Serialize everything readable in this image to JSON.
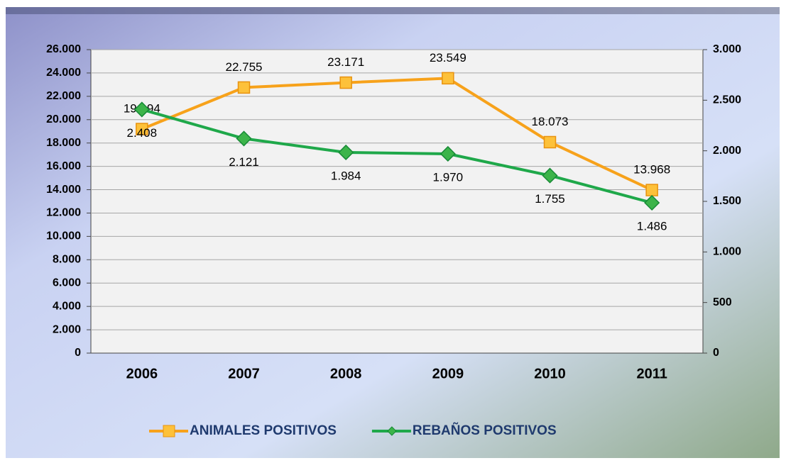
{
  "chart_data": {
    "type": "line",
    "categories": [
      "2006",
      "2007",
      "2008",
      "2009",
      "2010",
      "2011"
    ],
    "series": [
      {
        "name": "ANIMALES POSITIVOS",
        "color": "#f7a21b",
        "axis": "y",
        "values": [
          19194,
          22755,
          23171,
          23549,
          18073,
          13968
        ],
        "value_labels": [
          "19.194",
          "22.755",
          "23.171",
          "23.549",
          "18.073",
          "13.968"
        ]
      },
      {
        "name": "REBAÑOS POSITIVOS",
        "color": "#1fa84a",
        "axis": "y2",
        "values": [
          2408,
          2121,
          1984,
          1970,
          1755,
          1486
        ],
        "value_labels": [
          "2.408",
          "2.121",
          "1.984",
          "1.970",
          "1.755",
          "1.486"
        ]
      }
    ],
    "ylim": [
      0,
      26000
    ],
    "yticks": [
      0,
      {
        "value": 2000,
        "label": "2.000"
      },
      {
        "value": 4000,
        "label": "4.000"
      },
      {
        "value": 6000,
        "label": "6.000"
      },
      {
        "value": 8000,
        "label": "8.000"
      },
      {
        "value": 10000,
        "label": "10.000"
      },
      {
        "value": 12000,
        "label": "12.000"
      },
      {
        "value": 14000,
        "label": "14.000"
      },
      {
        "value": 16000,
        "label": "16.000"
      },
      {
        "value": 18000,
        "label": "18.000"
      },
      {
        "value": 20000,
        "label": "20.000"
      },
      {
        "value": 22000,
        "label": "22.000"
      },
      {
        "value": 24000,
        "label": "24.000"
      },
      {
        "value": 26000,
        "label": "26.000"
      }
    ],
    "y2lim": [
      0,
      3000
    ],
    "y2ticks": [
      0,
      500,
      {
        "value": 1000,
        "label": "1.000"
      },
      {
        "value": 1500,
        "label": "1.500"
      },
      {
        "value": 2000,
        "label": "2.000"
      },
      {
        "value": 2500,
        "label": "2.500"
      },
      {
        "value": 3000,
        "label": "3.000"
      }
    ],
    "grid": true,
    "legend": "bottom"
  }
}
